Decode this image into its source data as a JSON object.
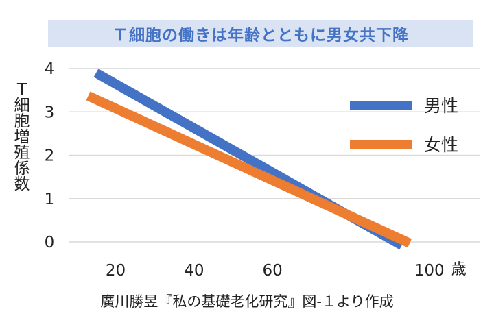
{
  "chart_data": {
    "type": "line",
    "title": "Ｔ細胞の働きは年齢とともに男女共下降",
    "ylabel": "Ｔ細胞増殖係数",
    "xlabel": "",
    "x_unit": "歳",
    "xlim": [
      8,
      113
    ],
    "ylim": [
      0,
      4
    ],
    "x_ticks": [
      20,
      40,
      60,
      100
    ],
    "y_ticks": [
      0,
      1,
      2,
      3,
      4
    ],
    "grid": true,
    "legend_position": "right",
    "series": [
      {
        "name": "男性",
        "color": "#4472c4",
        "x": [
          15,
          93
        ],
        "y": [
          3.9,
          -0.08
        ]
      },
      {
        "name": "女性",
        "color": "#ed7d31",
        "x": [
          13,
          95
        ],
        "y": [
          3.37,
          -0.03
        ]
      }
    ],
    "source_note": "廣川勝昱『私の基礎老化研究』図‐１より作成"
  }
}
